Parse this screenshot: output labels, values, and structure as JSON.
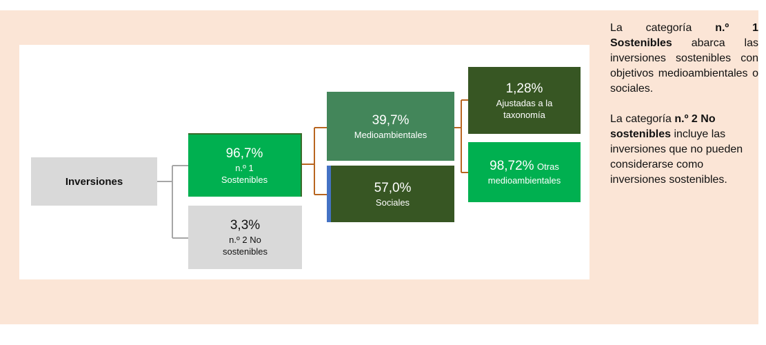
{
  "nodes": [
    {
      "label": "Inversiones"
    },
    {
      "value": "96,7%",
      "label": "n.º 1 Sostenibles"
    },
    {
      "value": "3,3%",
      "label": "n.º 2 No sostenibles"
    },
    {
      "value": "39,7%",
      "label": "Medioambientales"
    },
    {
      "value": "57,0%",
      "label": "Sociales"
    },
    {
      "value": "1,28%",
      "label": "Ajustadas a la taxonomía"
    },
    {
      "value": "98,72%",
      "label": "Otras",
      "label2": "medioambientales"
    }
  ],
  "notes": [
    {
      "parts": [
        "La categoría ",
        "n.º 1 Sostenibles",
        " abarca las inversiones sostenibles con objetivos medioambientales o sociales."
      ]
    },
    {
      "parts": [
        "La categoría ",
        "n.º 2 No sostenibles",
        " incluye las inversiones que no pueden considerarse como inversiones sostenibles."
      ]
    }
  ]
}
